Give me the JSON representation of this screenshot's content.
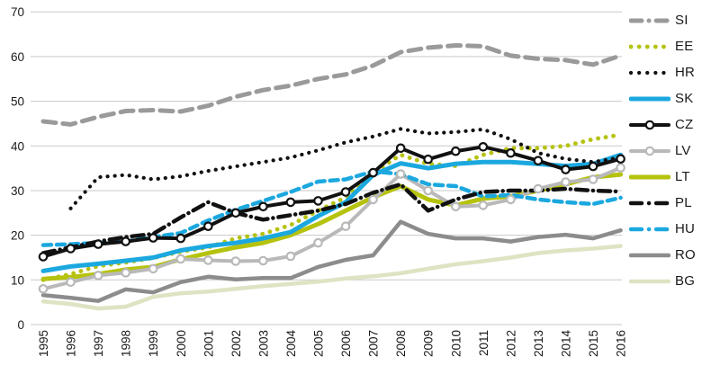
{
  "chart_data": {
    "type": "line",
    "title": "",
    "xlabel": "",
    "ylabel": "",
    "x": [
      1995,
      1996,
      1997,
      1998,
      1999,
      2000,
      2001,
      2002,
      2003,
      2004,
      2005,
      2006,
      2007,
      2008,
      2009,
      2010,
      2011,
      2012,
      2013,
      2014,
      2015,
      2016
    ],
    "ylim": [
      0,
      70
    ],
    "yticks": [
      0,
      10,
      20,
      30,
      40,
      50,
      60,
      70
    ],
    "grid": true,
    "legend_position": "right",
    "grid_color": "#c9c9c9",
    "draw_order": [
      "BG",
      "RO",
      "SI",
      "LT",
      "EE",
      "LV",
      "SK",
      "HU",
      "PL",
      "HR",
      "CZ"
    ],
    "series": [
      {
        "name": "SI",
        "color": "#9a9a9a",
        "width": 5,
        "dash": "14 8",
        "marker": null,
        "values": [
          45.5,
          44.8,
          46.5,
          47.8,
          48,
          47.7,
          49,
          51,
          52.5,
          53.5,
          55,
          56,
          58,
          61,
          62,
          62.5,
          62.3,
          60.2,
          59.5,
          59.2,
          58.2,
          60.2
        ]
      },
      {
        "name": "EE",
        "color": "#b5c20e",
        "width": 4.8,
        "dash": "0.1 8.5",
        "marker": null,
        "values": [
          10,
          11.3,
          13.1,
          13.9,
          14.9,
          16.3,
          17.3,
          19.3,
          20.3,
          22.3,
          25.5,
          28.5,
          34,
          38,
          36,
          35.5,
          38,
          39.5,
          39.5,
          40,
          41.5,
          42.5
        ]
      },
      {
        "name": "HR",
        "color": "#111111",
        "width": 4.2,
        "dash": "0.1 8",
        "marker": null,
        "values": [
          null,
          26,
          33,
          33.5,
          32.5,
          33.2,
          34.4,
          35.4,
          36.4,
          37.4,
          39,
          40.8,
          42.1,
          43.8,
          42.8,
          43.1,
          43.7,
          41.5,
          38.4,
          37.1,
          36.4,
          37.4
        ]
      },
      {
        "name": "SK",
        "color": "#1ba8df",
        "width": 5,
        "dash": null,
        "marker": null,
        "values": [
          12,
          13,
          13.6,
          14.3,
          15,
          16.6,
          17.6,
          18.3,
          19.3,
          20.7,
          24.3,
          27.4,
          33.5,
          36.1,
          35,
          36,
          36.4,
          36.4,
          36,
          35.5,
          36,
          38
        ]
      },
      {
        "name": "CZ",
        "color": "#111111",
        "width": 4,
        "dash": null,
        "marker": "circle",
        "values": [
          15.2,
          17,
          18,
          18.6,
          19.4,
          19.3,
          22,
          25,
          26.4,
          27.4,
          27.7,
          29.7,
          34,
          39.5,
          37,
          38.8,
          39.8,
          38.4,
          36.7,
          34.7,
          35.4,
          37.1
        ]
      },
      {
        "name": "LV",
        "color": "#b9b9b9",
        "width": 4,
        "dash": null,
        "marker": "circle",
        "values": [
          8,
          9.5,
          11,
          11.6,
          12.5,
          14.7,
          14.4,
          14.2,
          14.3,
          15.3,
          18.3,
          22,
          28,
          33.7,
          30,
          26.4,
          26.7,
          28,
          30.4,
          31.9,
          32.5,
          35.1
        ]
      },
      {
        "name": "LT",
        "color": "#b5c20e",
        "width": 5,
        "dash": null,
        "marker": null,
        "values": [
          10.2,
          10.6,
          11.3,
          12.3,
          12.9,
          14.6,
          16,
          17.3,
          18.3,
          20,
          22.5,
          25.5,
          28.5,
          31,
          28,
          26.7,
          28.2,
          28.7,
          30,
          31.4,
          33,
          33.6
        ]
      },
      {
        "name": "PL",
        "color": "#111111",
        "width": 4.5,
        "dash": "13 6 0.1 6",
        "marker": null,
        "values": [
          16,
          17.3,
          18.6,
          19.6,
          20.3,
          24,
          27.4,
          25,
          23.5,
          24.5,
          25.5,
          27,
          29.5,
          31.4,
          25.5,
          28,
          29.7,
          30,
          30,
          30.4,
          30,
          29.8
        ]
      },
      {
        "name": "HU",
        "color": "#1ba8df",
        "width": 4.5,
        "dash": "9 6",
        "marker": null,
        "values": [
          17.8,
          18,
          18.3,
          18.6,
          19.6,
          20.5,
          23.3,
          25.7,
          27.7,
          29.7,
          32,
          32.5,
          34.3,
          33.7,
          31.4,
          31,
          28.7,
          29,
          28,
          27.4,
          27,
          28.4
        ]
      },
      {
        "name": "RO",
        "color": "#8c8c8c",
        "width": 4.5,
        "dash": null,
        "marker": null,
        "values": [
          6.6,
          6,
          5.3,
          7.9,
          7.2,
          9.5,
          10.7,
          10.1,
          10.4,
          10.4,
          12.9,
          14.5,
          15.5,
          23,
          20.3,
          19.3,
          19.3,
          18.6,
          19.6,
          20.1,
          19.3,
          21.1
        ]
      },
      {
        "name": "BG",
        "color": "#dee3c3",
        "width": 4.5,
        "dash": null,
        "marker": null,
        "values": [
          5.2,
          4.6,
          3.6,
          4,
          6.2,
          7,
          7.4,
          8,
          8.6,
          9.1,
          9.6,
          10.3,
          10.8,
          11.5,
          12.5,
          13.5,
          14.2,
          15,
          16,
          16.6,
          17,
          17.6
        ]
      }
    ]
  }
}
